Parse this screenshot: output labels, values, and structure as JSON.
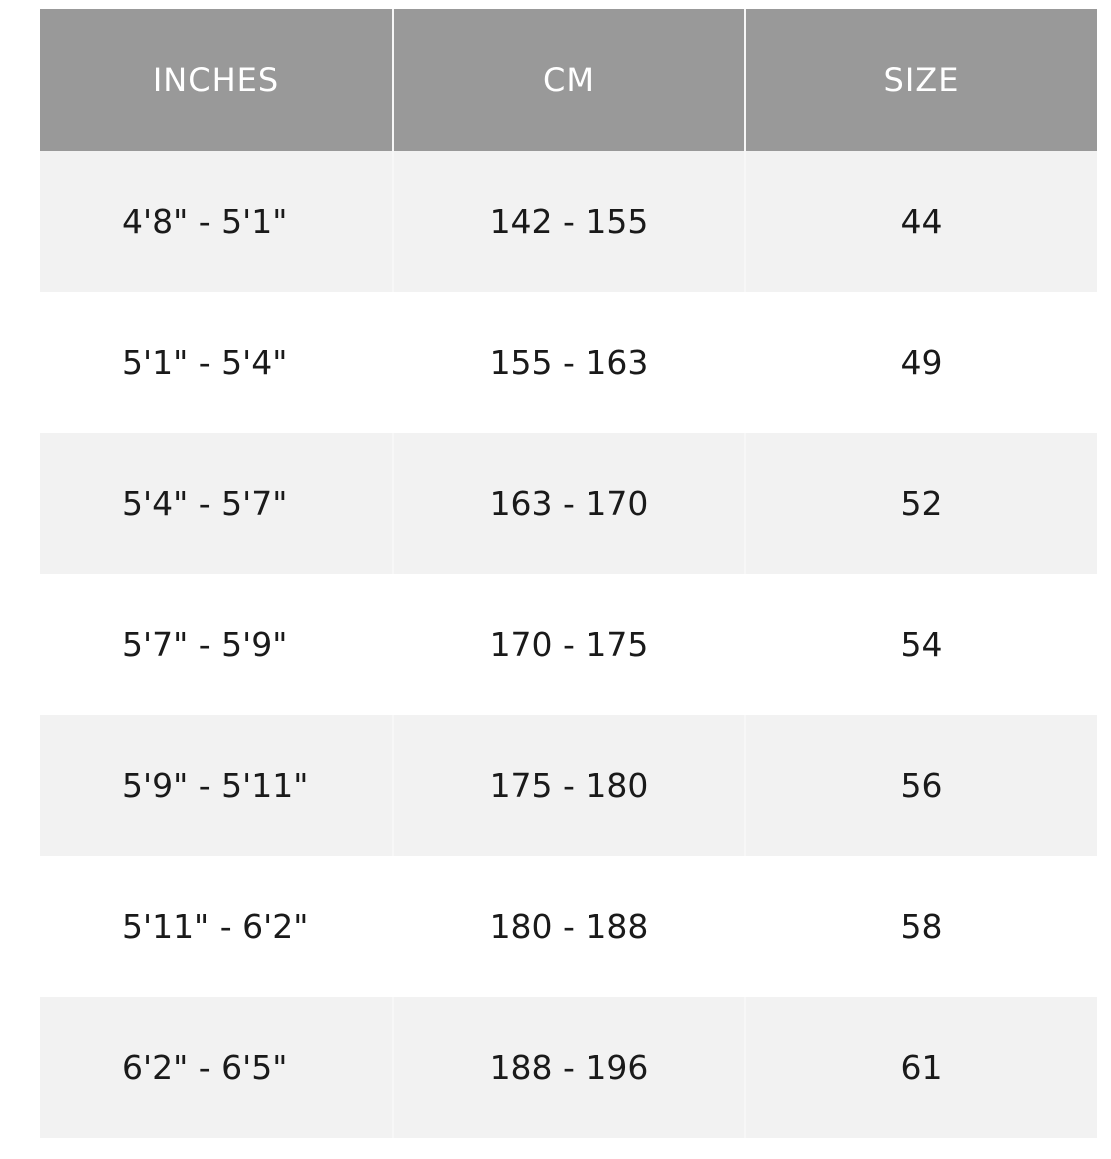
{
  "table": {
    "headers": [
      "INCHES",
      "CM",
      "SIZE"
    ],
    "rows": [
      [
        "4'8\" - 5'1\"",
        "142 - 155",
        "44"
      ],
      [
        "5'1\" - 5'4\"",
        "155 - 163",
        "49"
      ],
      [
        "5'4\" - 5'7\"",
        "163 - 170",
        "52"
      ],
      [
        "5'7\" - 5'9\"",
        "170 - 175",
        "54"
      ],
      [
        "5'9\" - 5'11\"",
        "175 - 180",
        "56"
      ],
      [
        "5'11\" - 6'2\"",
        "180 - 188",
        "58"
      ],
      [
        "6'2\" - 6'5\"",
        "188 - 196",
        "61"
      ]
    ]
  },
  "colors": {
    "header_bg": "#999999",
    "stripe_bg": "#f2f2f2",
    "text": "#1a1a1a"
  }
}
